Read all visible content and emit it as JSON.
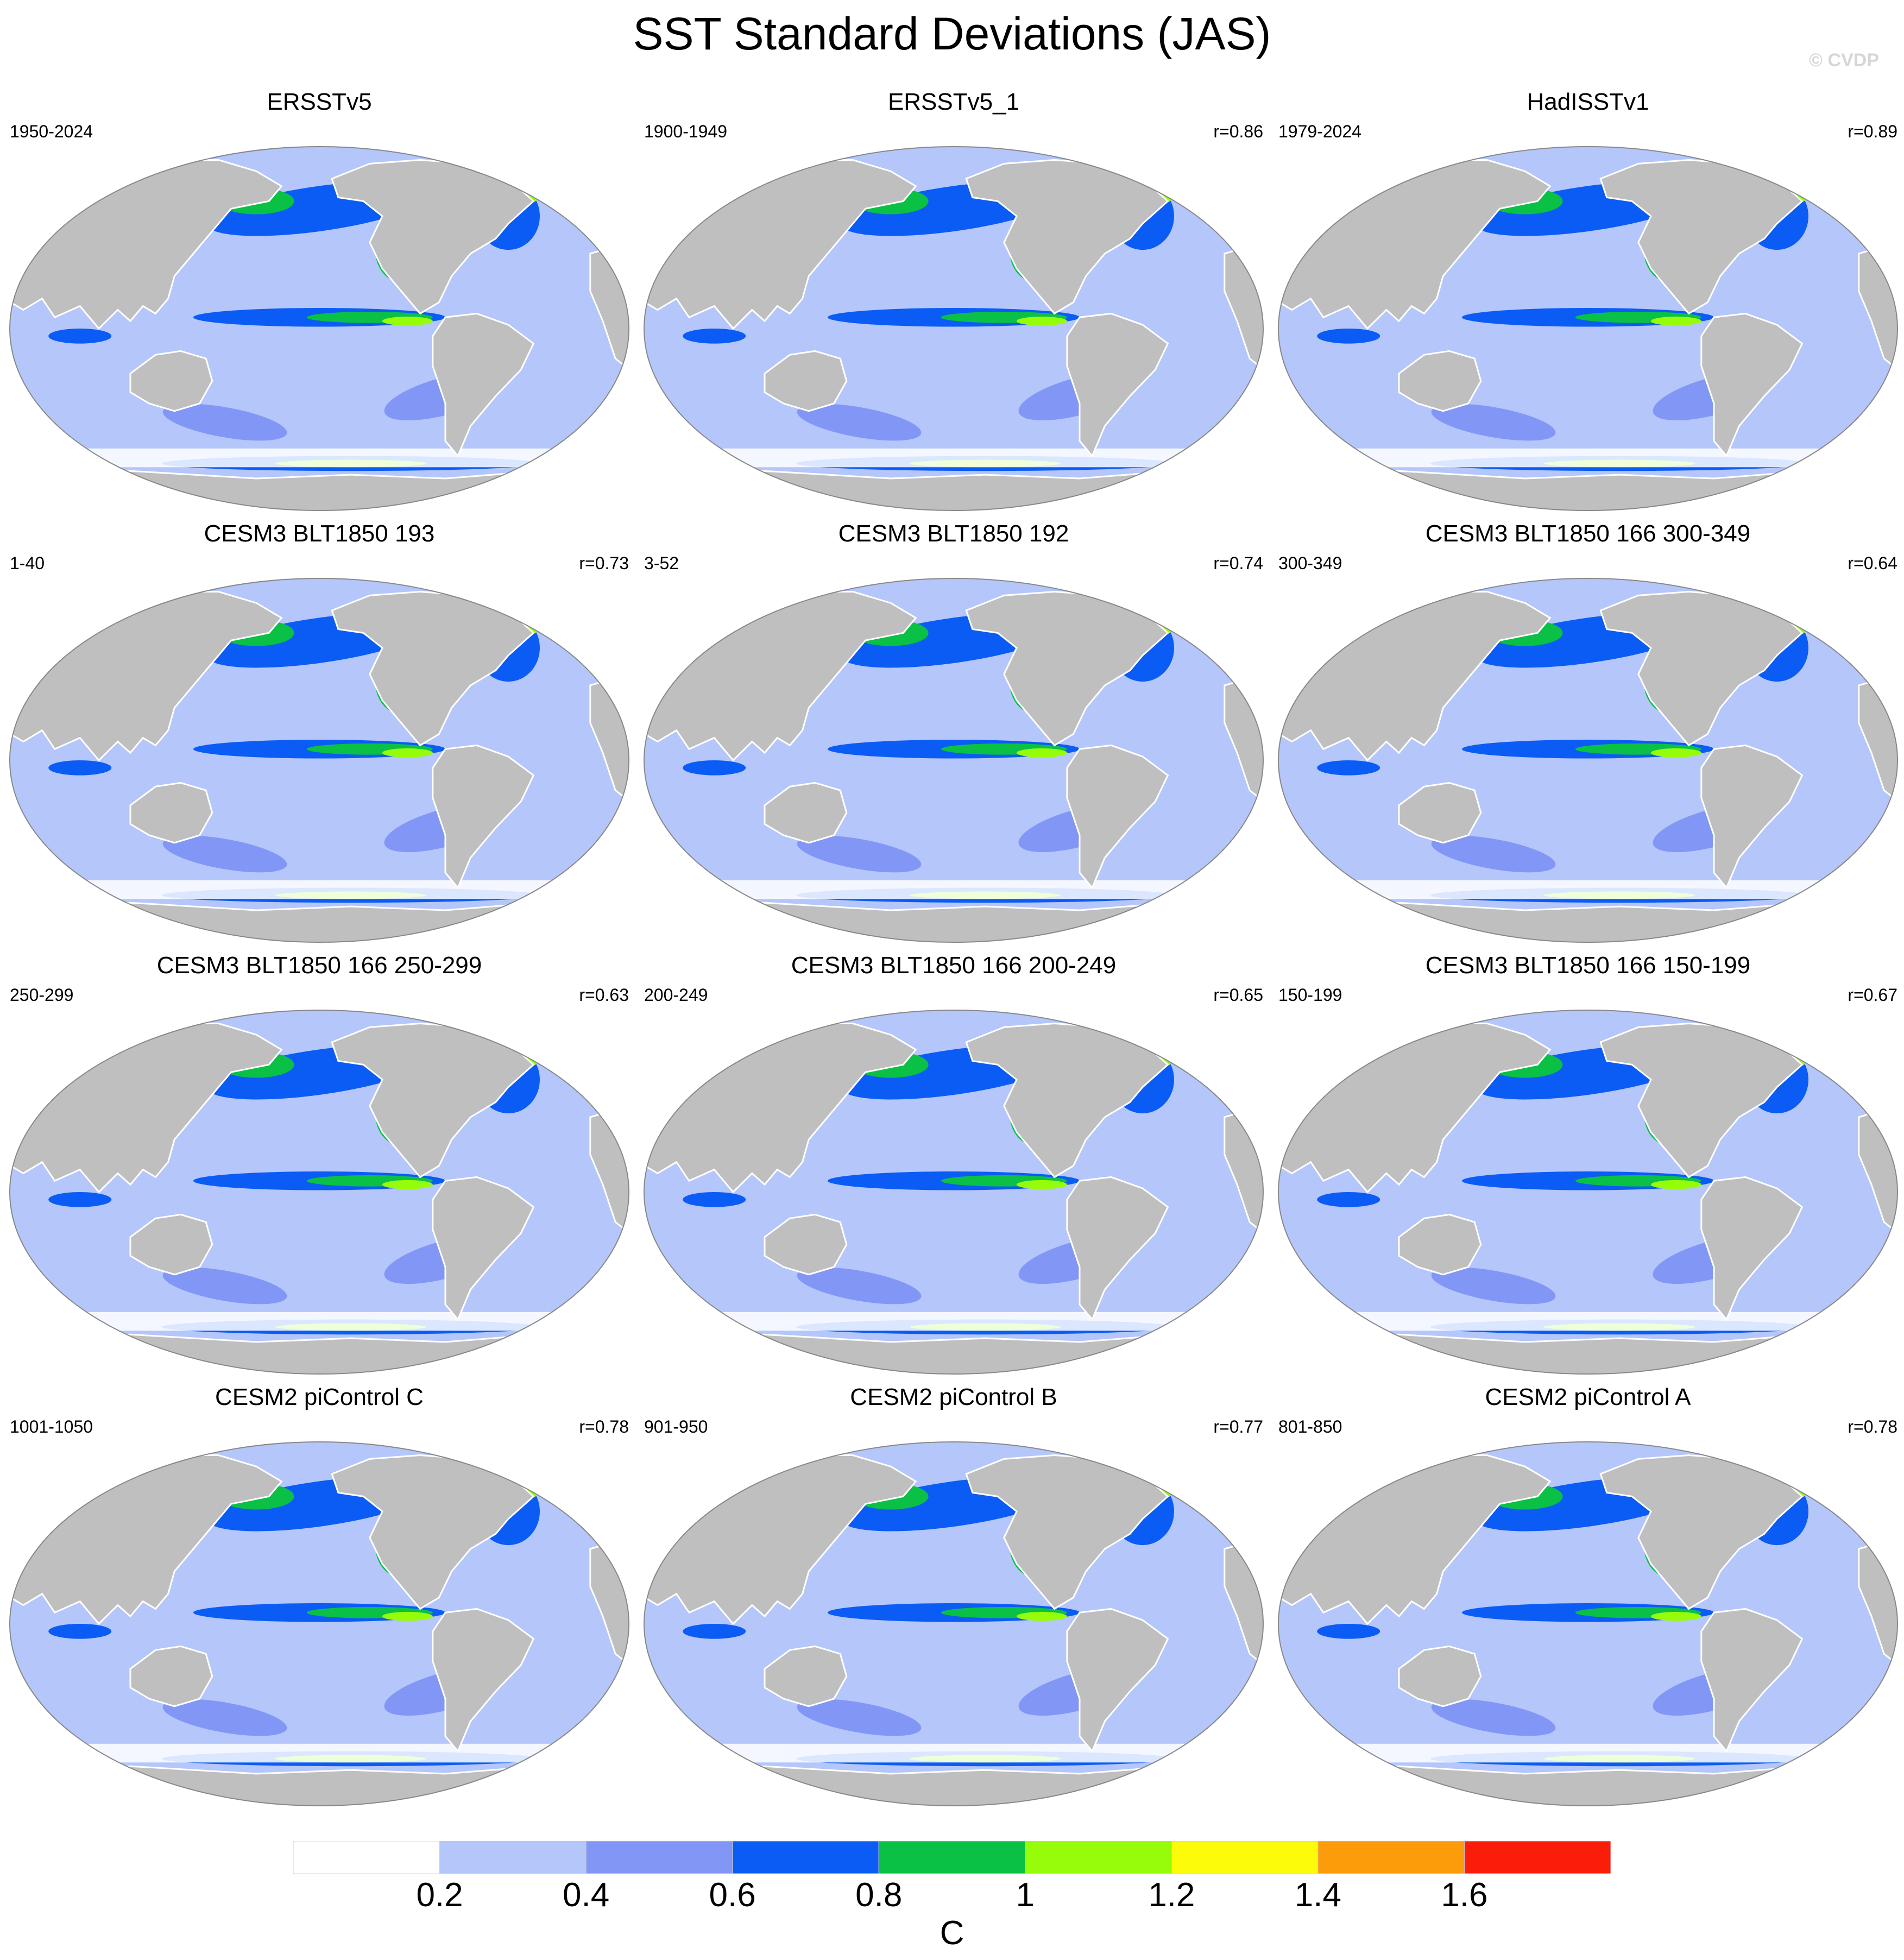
{
  "title": "SST Standard Deviations (JAS)",
  "watermark": "© CVDP",
  "colors": {
    "land": "#bfbfbf",
    "border": "#888888",
    "levels": [
      "#ffffff",
      "#b4c6fa",
      "#8297f5",
      "#0a5cf4",
      "#0ac045",
      "#96fc0a",
      "#fcfc0a",
      "#fc9c0a",
      "#fa1e0a"
    ]
  },
  "colorbar": {
    "ticks": [
      "0.2",
      "0.4",
      "0.6",
      "0.8",
      "1",
      "1.2",
      "1.4",
      "1.6"
    ],
    "unit": "C"
  },
  "panels": [
    {
      "title": "ERSSTv5",
      "period": "1950-2024",
      "corr": ""
    },
    {
      "title": "ERSSTv5_1",
      "period": "1900-1949",
      "corr": "r=0.86"
    },
    {
      "title": "HadISSTv1",
      "period": "1979-2024",
      "corr": "r=0.89"
    },
    {
      "title": "CESM3 BLT1850 193",
      "period": "1-40",
      "corr": "r=0.73"
    },
    {
      "title": "CESM3 BLT1850 192",
      "period": "3-52",
      "corr": "r=0.74"
    },
    {
      "title": "CESM3 BLT1850 166 300-349",
      "period": "300-349",
      "corr": "r=0.64"
    },
    {
      "title": "CESM3 BLT1850 166 250-299",
      "period": "250-299",
      "corr": "r=0.63"
    },
    {
      "title": "CESM3 BLT1850 166 200-249",
      "period": "200-249",
      "corr": "r=0.65"
    },
    {
      "title": "CESM3 BLT1850 166 150-199",
      "period": "150-199",
      "corr": "r=0.67"
    },
    {
      "title": "CESM2 piControl C",
      "period": "1001-1050",
      "corr": "r=0.78"
    },
    {
      "title": "CESM2 piControl B",
      "period": "901-950",
      "corr": "r=0.77"
    },
    {
      "title": "CESM2 piControl A",
      "period": "801-850",
      "corr": "r=0.78"
    }
  ]
}
